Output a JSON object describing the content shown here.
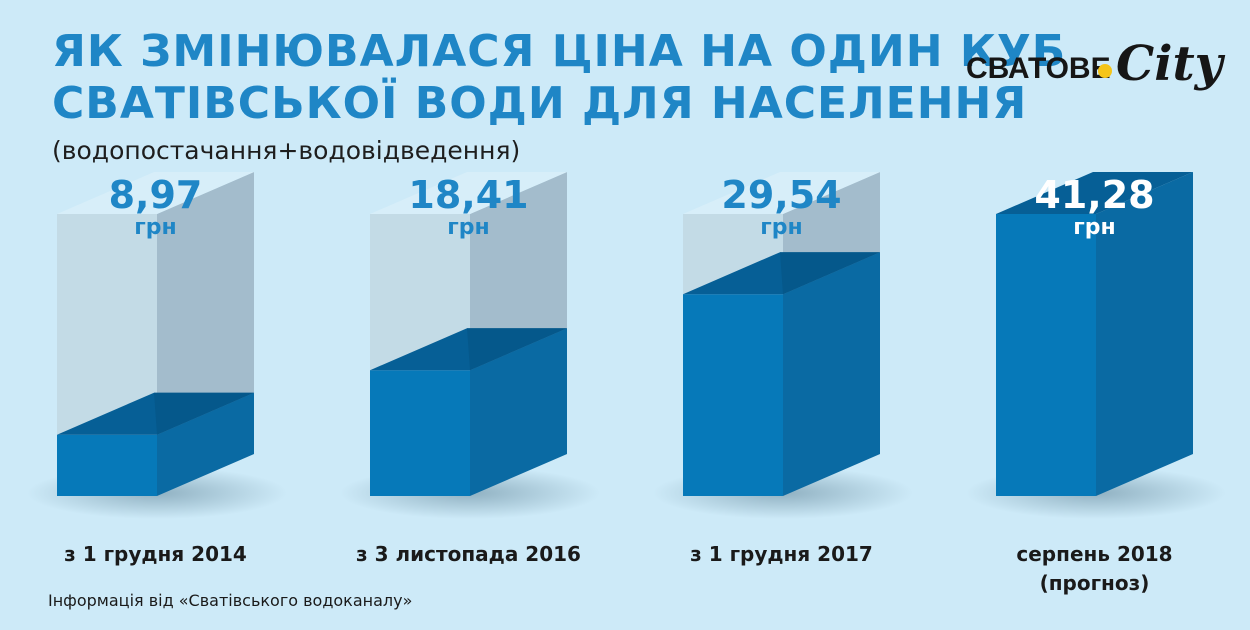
{
  "header": {
    "title_line1": "ЯК ЗМІНЮВАЛАСЯ ЦІНА НА ОДИН КУБ",
    "title_line2": "СВАТІВСЬКОЇ ВОДИ ДЛЯ НАСЕЛЕННЯ",
    "subtitle": "(водопостачання+водовідведення)"
  },
  "logo": {
    "text": "СВАТОВЕ",
    "script": "City"
  },
  "source": "Інформація від «Сватівського водоканалу»",
  "colors": {
    "background": "#cdeaf8",
    "title": "#1f86c6",
    "fill_front": "#0679b9",
    "fill_side": "#0a6aa3",
    "fill_top": "#065f96",
    "ghost_front": "#c3dbe6",
    "ghost_side": "#a3bccc",
    "ghost_top": "#d7eef9"
  },
  "chart_data": {
    "type": "bar",
    "unit": "грн",
    "ylim": [
      0,
      41.28
    ],
    "categories": [
      {
        "line1": "з 1 грудня 2014",
        "line2": ""
      },
      {
        "line1": "з 3 листопада 2016",
        "line2": ""
      },
      {
        "line1": "з 1 грудня 2017",
        "line2": ""
      },
      {
        "line1": "серпень 2018",
        "line2": "(прогноз)"
      }
    ],
    "values": [
      8.97,
      18.41,
      29.54,
      41.28
    ],
    "value_labels": [
      "8,97",
      "18,41",
      "29,54",
      "41,28"
    ]
  }
}
